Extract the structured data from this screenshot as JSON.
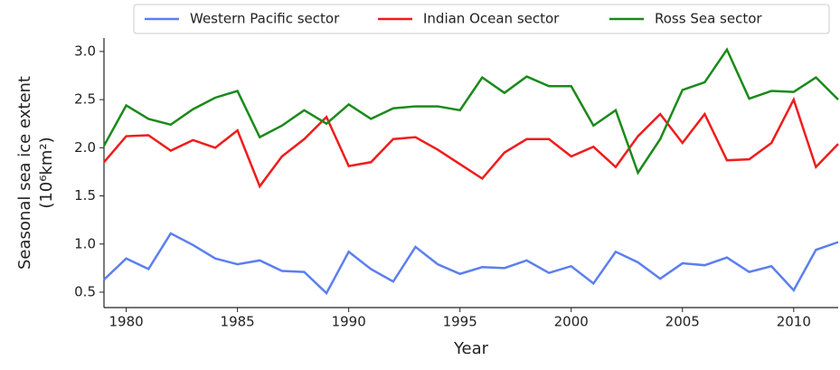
{
  "chart_data": {
    "type": "line",
    "x_label": "Year",
    "y_label": [
      "Seasonal sea ice extent",
      "(10⁶km²)"
    ],
    "x": [
      1979,
      1980,
      1981,
      1982,
      1983,
      1984,
      1985,
      1986,
      1987,
      1988,
      1989,
      1990,
      1991,
      1992,
      1993,
      1994,
      1995,
      1996,
      1997,
      1998,
      1999,
      2000,
      2001,
      2002,
      2003,
      2004,
      2005,
      2006,
      2007,
      2008,
      2009,
      2010,
      2011,
      2012
    ],
    "series": [
      {
        "name": "Western Pacific sector",
        "color": "#5b7ff0",
        "values": [
          0.63,
          0.85,
          0.74,
          1.11,
          0.99,
          0.85,
          0.79,
          0.83,
          0.72,
          0.71,
          0.49,
          0.92,
          0.74,
          0.61,
          0.97,
          0.79,
          0.69,
          0.76,
          0.75,
          0.83,
          0.7,
          0.77,
          0.59,
          0.92,
          0.81,
          0.64,
          0.8,
          0.78,
          0.86,
          0.71,
          0.77,
          0.52,
          0.94,
          1.02
        ]
      },
      {
        "name": "Indian Ocean sector",
        "color": "#f01c1c",
        "values": [
          1.85,
          2.12,
          2.13,
          1.97,
          2.08,
          2.0,
          2.18,
          1.6,
          1.91,
          2.09,
          2.32,
          1.81,
          1.85,
          2.09,
          2.11,
          1.98,
          1.83,
          1.68,
          1.95,
          2.09,
          2.09,
          1.91,
          2.01,
          1.8,
          2.12,
          2.35,
          2.05,
          2.35,
          1.87,
          1.88,
          2.05,
          2.5,
          1.8,
          2.04
        ]
      },
      {
        "name": "Ross Sea sector",
        "color": "#1a8a1a",
        "values": [
          2.02,
          2.44,
          2.3,
          2.24,
          2.4,
          2.52,
          2.59,
          2.11,
          2.23,
          2.39,
          2.25,
          2.45,
          2.3,
          2.41,
          2.43,
          2.43,
          2.39,
          2.73,
          2.57,
          2.74,
          2.64,
          2.64,
          2.23,
          2.39,
          1.74,
          2.09,
          2.6,
          2.68,
          3.02,
          2.51,
          2.59,
          2.58,
          2.73,
          2.5
        ]
      }
    ],
    "xlim": [
      1979,
      2012
    ],
    "xticks": [
      1980,
      1985,
      1990,
      1995,
      2000,
      2005,
      2010
    ],
    "ylim": [
      0.34,
      3.14
    ],
    "yticks": [
      {
        "value": 0.5,
        "label": "0.5"
      },
      {
        "value": 1.0,
        "label": "1.0"
      },
      {
        "value": 1.5,
        "label": "1.5"
      },
      {
        "value": 2.0,
        "label": "2.0"
      },
      {
        "value": 2.5,
        "label": "2.5"
      },
      {
        "value": 3.0,
        "label": "3.0"
      }
    ],
    "grid": false,
    "legend": "upper center"
  }
}
